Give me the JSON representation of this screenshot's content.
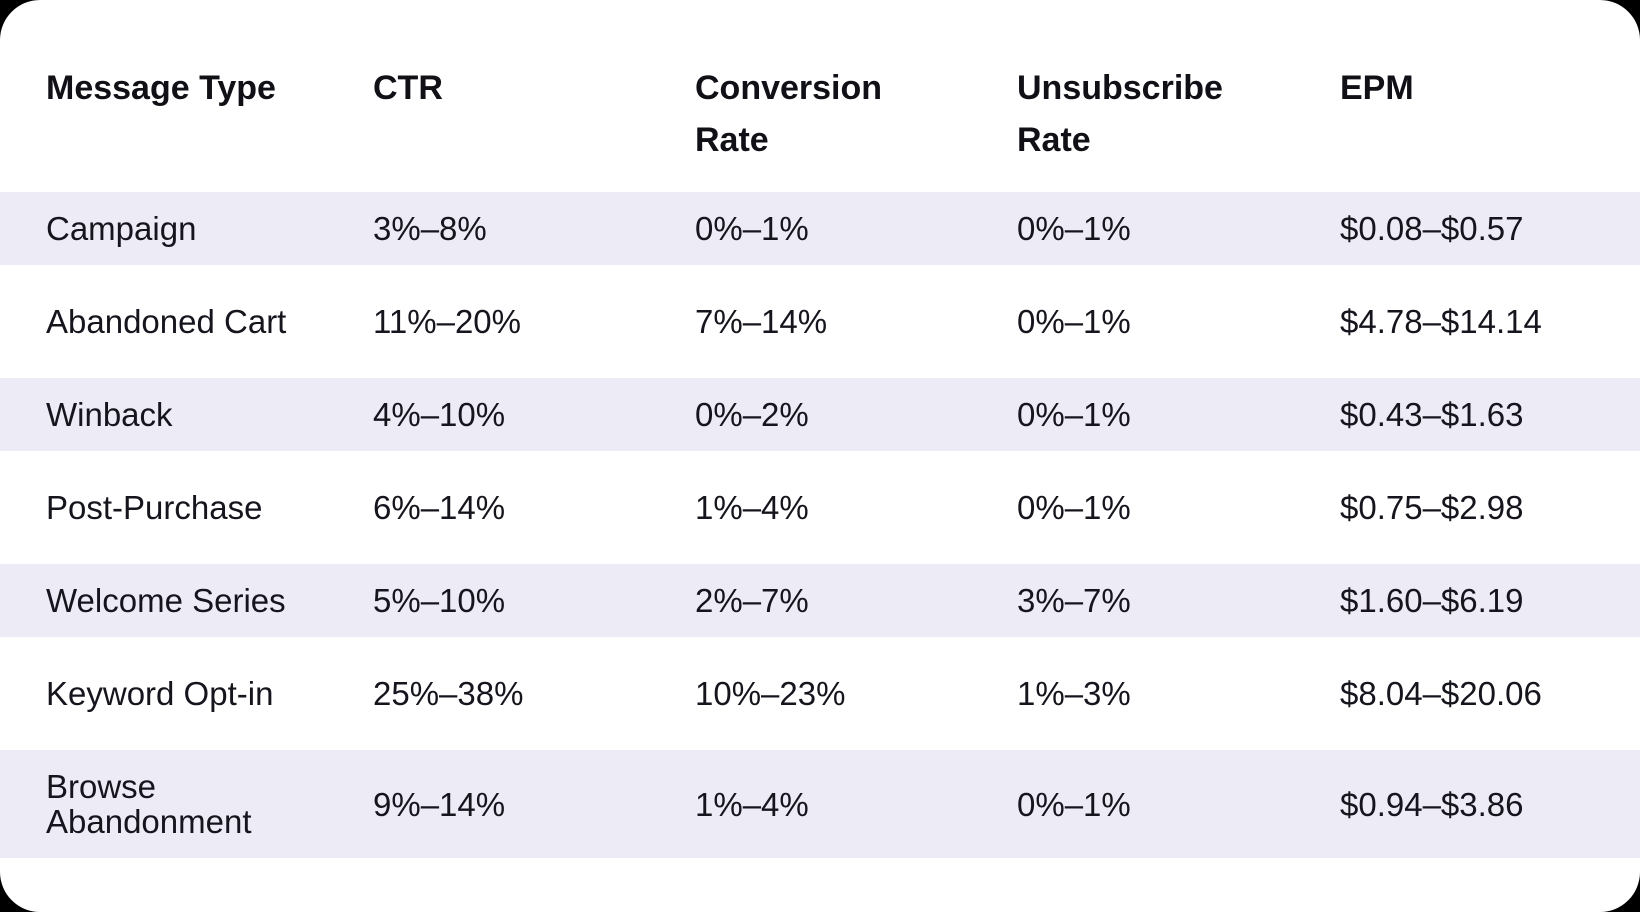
{
  "colors": {
    "page_background": "#000000",
    "card_background": "#ffffff",
    "row_stripe": "#edecf6",
    "text": "#16151d"
  },
  "table": {
    "columns": [
      "Message Type",
      "CTR",
      "Conversion Rate",
      "Unsubscribe Rate",
      "EPM"
    ],
    "rows": [
      [
        "Campaign",
        "3%–8%",
        "0%–1%",
        "0%–1%",
        "$0.08–$0.57"
      ],
      [
        "Abandoned Cart",
        "11%–20%",
        "7%–14%",
        "0%–1%",
        "$4.78–$14.14"
      ],
      [
        "Winback",
        "4%–10%",
        "0%–2%",
        "0%–1%",
        "$0.43–$1.63"
      ],
      [
        "Post-Purchase",
        "6%–14%",
        "1%–4%",
        "0%–1%",
        "$0.75–$2.98"
      ],
      [
        "Welcome Series",
        "5%–10%",
        "2%–7%",
        "3%–7%",
        "$1.60–$6.19"
      ],
      [
        "Keyword Opt-in",
        "25%–38%",
        "10%–23%",
        "1%–3%",
        "$8.04–$20.06"
      ],
      [
        "Browse Abandonment",
        "9%–14%",
        "1%–4%",
        "0%–1%",
        "$0.94–$3.86"
      ]
    ]
  },
  "chart_data": {
    "type": "table",
    "title": "",
    "columns": [
      "Message Type",
      "CTR",
      "Conversion Rate",
      "Unsubscribe Rate",
      "EPM"
    ],
    "rows": [
      {
        "message_type": "Campaign",
        "ctr": "3%–8%",
        "conversion_rate": "0%–1%",
        "unsubscribe_rate": "0%–1%",
        "epm": "$0.08–$0.57"
      },
      {
        "message_type": "Abandoned Cart",
        "ctr": "11%–20%",
        "conversion_rate": "7%–14%",
        "unsubscribe_rate": "0%–1%",
        "epm": "$4.78–$14.14"
      },
      {
        "message_type": "Winback",
        "ctr": "4%–10%",
        "conversion_rate": "0%–2%",
        "unsubscribe_rate": "0%–1%",
        "epm": "$0.43–$1.63"
      },
      {
        "message_type": "Post-Purchase",
        "ctr": "6%–14%",
        "conversion_rate": "1%–4%",
        "unsubscribe_rate": "0%–1%",
        "epm": "$0.75–$2.98"
      },
      {
        "message_type": "Welcome Series",
        "ctr": "5%–10%",
        "conversion_rate": "2%–7%",
        "unsubscribe_rate": "3%–7%",
        "epm": "$1.60–$6.19"
      },
      {
        "message_type": "Keyword Opt-in",
        "ctr": "25%–38%",
        "conversion_rate": "10%–23%",
        "unsubscribe_rate": "1%–3%",
        "epm": "$8.04–$20.06"
      },
      {
        "message_type": "Browse Abandonment",
        "ctr": "9%–14%",
        "conversion_rate": "1%–4%",
        "unsubscribe_rate": "0%–1%",
        "epm": "$0.94–$3.86"
      }
    ],
    "layout_hints": {
      "striped_rows": "odd rows lavender #edecf6",
      "header": "bold, top-aligned"
    }
  }
}
